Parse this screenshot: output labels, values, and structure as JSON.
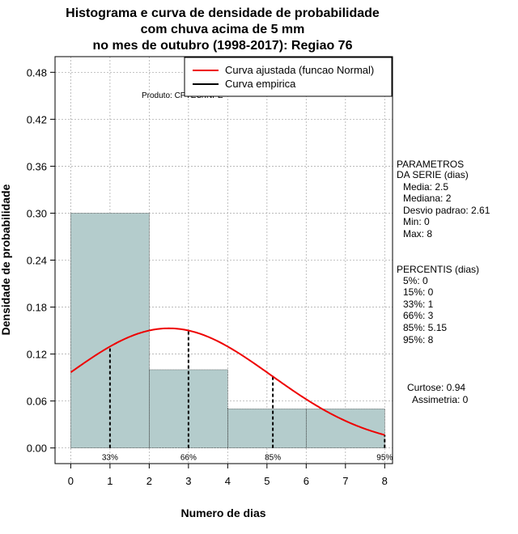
{
  "chart_data": {
    "type": "bar",
    "title_lines": [
      "Histograma e curva de densidade de probabilidade",
      "com chuva acima de 5 mm",
      "no mes de outubro (1998-2017): Regiao 76"
    ],
    "xlabel": "Numero de dias",
    "ylabel": "Densidade de probabilidade",
    "xlim": [
      -0.4,
      8.2
    ],
    "ylim": [
      -0.02,
      0.5
    ],
    "x_ticks": [
      0,
      1,
      2,
      3,
      4,
      5,
      6,
      7,
      8
    ],
    "x_tick_labels": [
      "0",
      "1",
      "2",
      "3",
      "4",
      "5",
      "6",
      "7",
      "8"
    ],
    "y_ticks": [
      0.0,
      0.06,
      0.12,
      0.18,
      0.24,
      0.3,
      0.36,
      0.42,
      0.48
    ],
    "y_tick_labels": [
      "0.00",
      "0.06",
      "0.12",
      "0.18",
      "0.24",
      "0.30",
      "0.36",
      "0.42",
      "0.48"
    ],
    "bins": [
      {
        "from": 0,
        "to": 2,
        "density": 0.3
      },
      {
        "from": 2,
        "to": 4,
        "density": 0.1
      },
      {
        "from": 4,
        "to": 6,
        "density": 0.05
      },
      {
        "from": 6,
        "to": 8,
        "density": 0.05
      }
    ],
    "normal_curve": {
      "mean": 2.5,
      "sd": 2.61,
      "x_from": 0,
      "x_to": 8,
      "color": "#ee0000"
    },
    "percentile_lines": [
      {
        "x": 1,
        "label": "33%"
      },
      {
        "x": 3,
        "label": "66%"
      },
      {
        "x": 5.15,
        "label": "85%"
      },
      {
        "x": 8,
        "label": "95%"
      }
    ],
    "legend": {
      "position": "top-right",
      "entries": [
        {
          "label": "Curva ajustada (funcao Normal)",
          "color": "#ee0000"
        },
        {
          "label": "Curva empirica",
          "color": "#000000"
        }
      ]
    },
    "product_note": "Produto: CPTEC/INPE",
    "bar_color": "#b4cccc"
  },
  "side_panel": {
    "parametros": [
      "PARAMETROS",
      "DA SERIE (dias)",
      "Media: 2.5",
      "Mediana: 2",
      "Desvio padrao: 2.61",
      "Min: 0",
      "Max: 8"
    ],
    "percentis": [
      "PERCENTIS (dias)",
      "5%: 0",
      "15%: 0",
      "33%: 1",
      "66%: 3",
      "85%: 5.15",
      "95%: 8"
    ],
    "shape": [
      "Curtose: 0.94",
      "Assimetria: 0"
    ]
  }
}
